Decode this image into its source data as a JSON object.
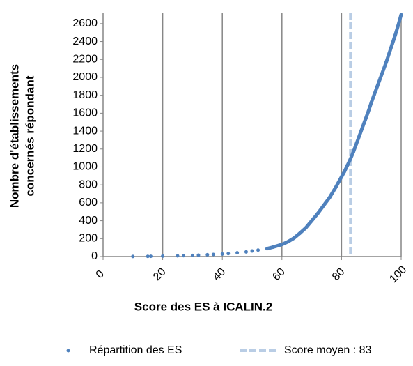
{
  "chart_data": {
    "type": "scatter",
    "xlabel": "Score des ES à ICALIN.2",
    "ylabel": [
      "Nombre d'établissements",
      "concernés  répondant"
    ],
    "series": [
      {
        "name": "Répartition des ES",
        "color": "#4f81bd",
        "x": [
          10,
          15,
          16,
          20,
          25,
          27,
          30,
          32,
          35,
          37,
          40,
          42,
          45,
          48,
          50,
          52,
          55,
          57,
          60,
          62,
          64,
          66,
          68,
          70,
          72,
          74,
          76,
          78,
          80,
          81,
          82,
          83,
          84,
          85,
          86,
          87,
          88,
          89,
          90,
          91,
          92,
          93,
          94,
          95,
          96,
          97,
          98,
          99,
          100
        ],
        "values": [
          1,
          2,
          3,
          5,
          8,
          10,
          13,
          16,
          20,
          23,
          28,
          33,
          42,
          52,
          62,
          72,
          88,
          105,
          135,
          165,
          205,
          260,
          320,
          400,
          480,
          570,
          660,
          770,
          890,
          950,
          1020,
          1090,
          1170,
          1260,
          1350,
          1440,
          1530,
          1620,
          1720,
          1810,
          1900,
          1990,
          2080,
          2170,
          2270,
          2370,
          2470,
          2580,
          2700
        ]
      }
    ],
    "mean_line": {
      "name": "Score moyen : 83",
      "value": 83,
      "color": "#b9cde5"
    },
    "xlim": [
      0,
      100
    ],
    "xticks": [
      0,
      20,
      40,
      60,
      80,
      100
    ],
    "ylim": [
      0,
      2700
    ],
    "yticks": [
      0,
      200,
      400,
      600,
      800,
      1000,
      1200,
      1400,
      1600,
      1800,
      2000,
      2200,
      2400,
      2600
    ],
    "grid": true
  }
}
